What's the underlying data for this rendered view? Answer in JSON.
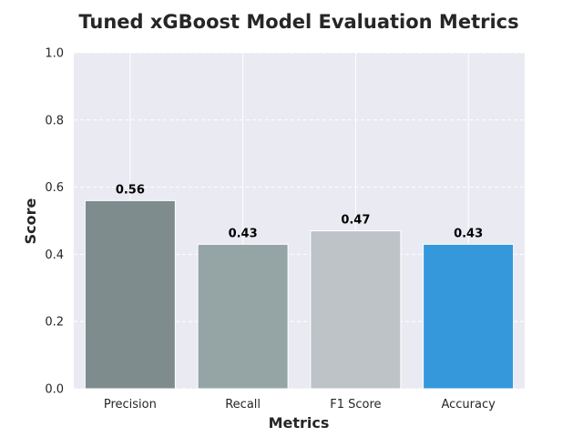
{
  "chart_data": {
    "type": "bar",
    "title": "Tuned xGBoost Model Evaluation Metrics",
    "xlabel": "Metrics",
    "ylabel": "Score",
    "categories": [
      "Precision",
      "Recall",
      "F1 Score",
      "Accuracy"
    ],
    "values": [
      0.56,
      0.43,
      0.47,
      0.43
    ],
    "data_labels": [
      "0.56",
      "0.43",
      "0.47",
      "0.43"
    ],
    "bar_colors": [
      "#7f8c8d",
      "#95a5a6",
      "#bdc3c7",
      "#3498db"
    ],
    "ylim": [
      0,
      1.0
    ],
    "yticks": [
      0.0,
      0.2,
      0.4,
      0.6,
      0.8,
      1.0
    ],
    "ytick_labels": [
      "0.0",
      "0.2",
      "0.4",
      "0.6",
      "0.8",
      "1.0"
    ],
    "grid": true,
    "background_color": "#eaeaf2",
    "legend": "none"
  }
}
